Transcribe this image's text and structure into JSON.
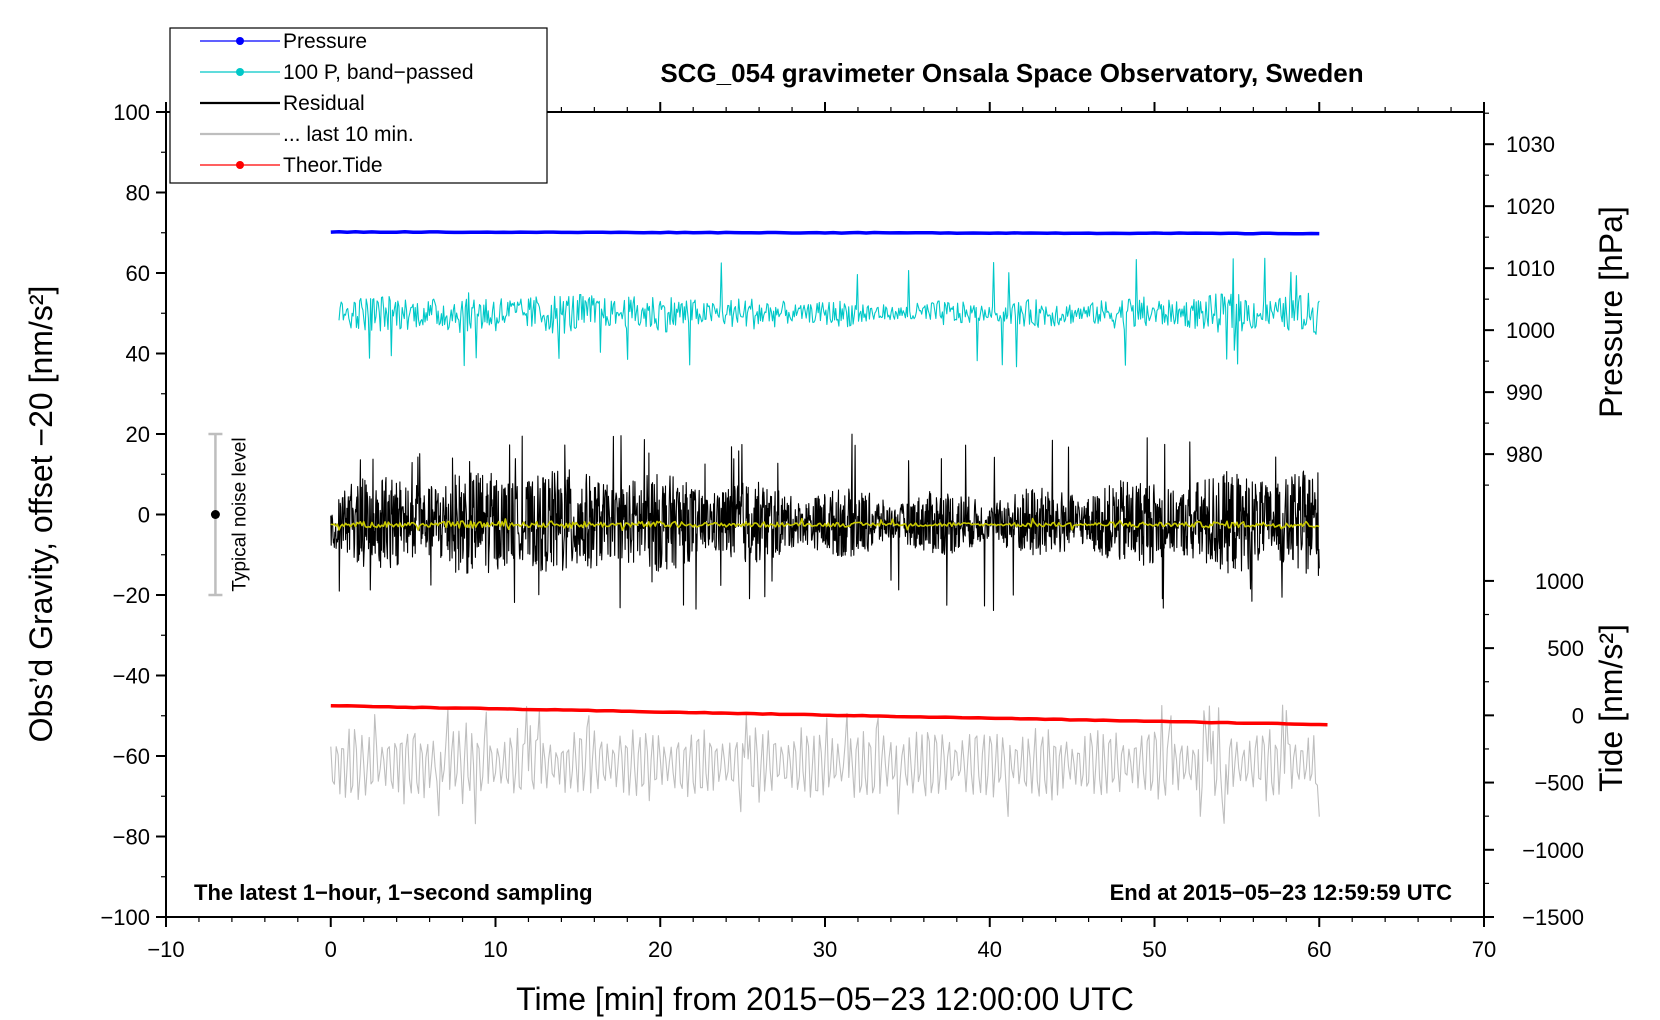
{
  "chart_data": {
    "type": "line",
    "title": "SCG_054 gravimeter Onsala Space Observatory, Sweden",
    "xlabel": "Time [min] from 2015−05−23 12:00:00 UTC",
    "ylabel_left": "Obs’d Gravity, offset −20 [nm/s²]",
    "ylabel_right_top": "Pressure [hPa]",
    "ylabel_right_bottom": "Tide [nm/s²]",
    "xlim": [
      -10,
      70
    ],
    "ylim_left": [
      -100,
      100
    ],
    "xticks": [
      -10,
      0,
      10,
      20,
      30,
      40,
      50,
      60,
      70
    ],
    "xtick_labels": [
      "−10",
      "0",
      "10",
      "20",
      "30",
      "40",
      "50",
      "60",
      "70"
    ],
    "yticks_left": [
      -100,
      -80,
      -60,
      -40,
      -20,
      0,
      20,
      40,
      60,
      80,
      100
    ],
    "ytick_labels_left": [
      "−100",
      "−80",
      "−60",
      "−40",
      "−20",
      "0",
      "20",
      "40",
      "60",
      "80",
      "100"
    ],
    "pressure_axis": {
      "ticks": [
        980,
        990,
        1000,
        1010,
        1020,
        1030
      ],
      "tick_labels": [
        "980",
        "990",
        "1000",
        "1010",
        "1020",
        "1030"
      ],
      "map_hpa_to_left": [
        [
          980,
          15
        ],
        [
          1030,
          92
        ]
      ]
    },
    "tide_axis": {
      "ticks": [
        -1500,
        -1000,
        -500,
        0,
        500,
        1000
      ],
      "tick_labels": [
        "−1500",
        "−1000",
        "−500",
        "0",
        "500",
        "1000"
      ],
      "map_tide_to_left": [
        [
          -1500,
          -100
        ],
        [
          1000,
          -16.5
        ]
      ]
    },
    "legend": {
      "position": "top-left",
      "entries": [
        {
          "label": "Pressure",
          "color": "#0000ff",
          "marker": true
        },
        {
          "label": "100 P, band−passed",
          "color": "#00c8c8",
          "marker": true
        },
        {
          "label": "Residual",
          "color": "#000000",
          "marker": false
        },
        {
          "label": "... last 10 min.",
          "color": "#bebebe",
          "marker": false
        },
        {
          "label": "Theor.Tide",
          "color": "#ff0000",
          "marker": true
        }
      ]
    },
    "series": [
      {
        "name": "Pressure",
        "color": "#0000ff",
        "style": "smooth",
        "x_range": [
          0,
          60
        ],
        "y_start": 70.2,
        "y_end": 69.8
      },
      {
        "name": "100 P, band−passed",
        "color": "#00c8c8",
        "style": "noise",
        "x_range": [
          0.5,
          60
        ],
        "center": 50,
        "amplitude": 3.5,
        "spike_max": 14
      },
      {
        "name": "Residual",
        "color": "#000000",
        "style": "noise",
        "x_range": [
          0,
          60
        ],
        "center": -2,
        "amplitude": 9,
        "spike_max": 22
      },
      {
        "name": "Residual smoothed",
        "color": "#c8c800",
        "style": "noise",
        "x_range": [
          0,
          60
        ],
        "center": -2.5,
        "amplitude": 0.6,
        "spike_max": 1.5
      },
      {
        "name": "... last 10 min.",
        "color": "#bebebe",
        "style": "oscillation",
        "x_range": [
          0,
          60
        ],
        "center": -62,
        "amplitude": 9,
        "spike_max": 15
      },
      {
        "name": "Theor.Tide",
        "color": "#ff0000",
        "style": "smooth",
        "x_range": [
          0,
          60.5
        ],
        "y_start": -47.5,
        "y_end": -52.2
      }
    ],
    "annotations": {
      "noise_label": "Typical noise level",
      "noise_bar": {
        "x": -7,
        "y_center": 0,
        "half_range": 20
      },
      "bottom_left": "The latest 1−hour, 1−second sampling",
      "bottom_right": "End at 2015−05−23 12:59:59 UTC"
    }
  }
}
